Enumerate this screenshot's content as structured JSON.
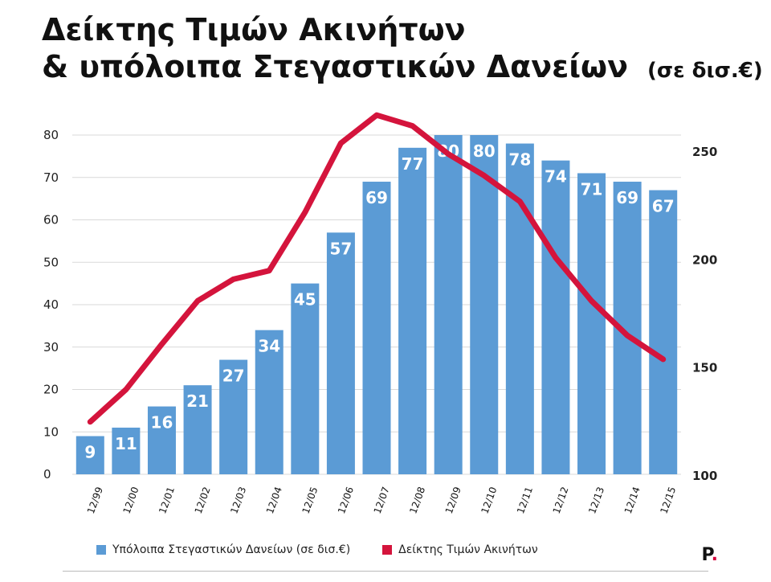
{
  "title": {
    "line1": "Δείκτης Τιμών Ακινήτων",
    "line2": "& υπόλοιπα Στεγαστικών Δανείων",
    "unit": "(σε δισ.€)"
  },
  "legend": {
    "bars_label": "Υπόλοιπα Στεγαστικών Δανείων  (σε δισ.€)",
    "line_label": "Δείκτης Τιμών Ακινήτων"
  },
  "brand": {
    "text": "P",
    "dot": "."
  },
  "colors": {
    "bars": "#5b9bd5",
    "line": "#d4143c",
    "grid": "#d9d9d9"
  },
  "chart_data": {
    "type": "bar",
    "categories": [
      "12/99",
      "12/00",
      "12/01",
      "12/02",
      "12/03",
      "12/04",
      "12/05",
      "12/06",
      "12/07",
      "12/08",
      "12/09",
      "12/10",
      "12/11",
      "12/12",
      "12/13",
      "12/14",
      "12/15"
    ],
    "series": [
      {
        "name": "Υπόλοιπα Στεγαστικών Δανείων  (σε δισ.€)",
        "type": "bar",
        "axis": "left",
        "values": [
          9,
          11,
          16,
          21,
          27,
          34,
          45,
          57,
          69,
          77,
          80,
          80,
          78,
          74,
          71,
          69,
          67
        ]
      },
      {
        "name": "Δείκτης Τιμών Ακινήτων",
        "type": "line",
        "axis": "right",
        "values": [
          125,
          140,
          161,
          181,
          191,
          195,
          222,
          254,
          267,
          262,
          249,
          239,
          227,
          201,
          181,
          165,
          154
        ]
      }
    ],
    "y_left": {
      "range": [
        0,
        80
      ],
      "ticks": [
        0,
        10,
        20,
        30,
        40,
        50,
        60,
        70,
        80
      ]
    },
    "y_right": {
      "range": [
        100,
        260
      ],
      "ticks": [
        100,
        150,
        200,
        250
      ]
    },
    "grid": true,
    "legend_position": "bottom-left"
  }
}
